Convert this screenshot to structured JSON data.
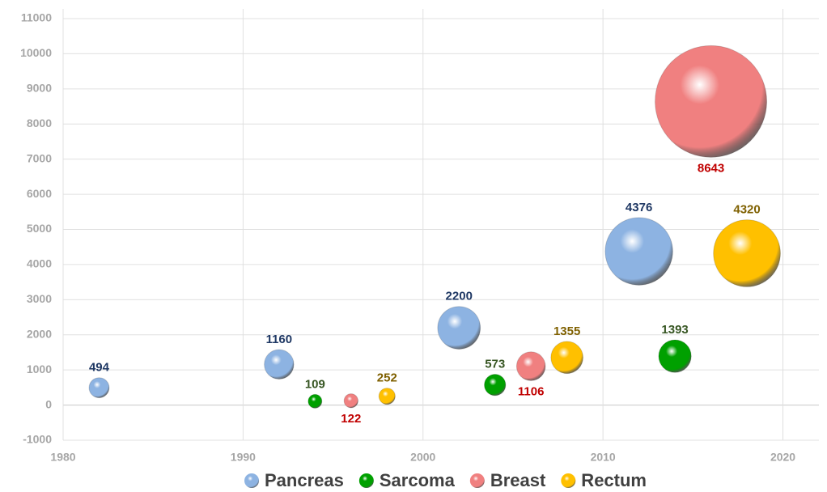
{
  "chart_data": {
    "type": "bubble",
    "xlim": [
      1980,
      2022
    ],
    "xticks": [
      1980,
      1990,
      2000,
      2010,
      2020
    ],
    "ylim": [
      -1000,
      11000
    ],
    "yticks": [
      -1000,
      0,
      1000,
      2000,
      3000,
      4000,
      5000,
      6000,
      7000,
      8000,
      9000,
      10000,
      11000
    ],
    "grid": true,
    "legend": "bottom",
    "series": [
      {
        "name": "Pancreas",
        "color": "#8db3e2",
        "label_color": "#1f3864",
        "x": [
          1982,
          1992,
          2002,
          2012
        ],
        "values": [
          494,
          1160,
          2200,
          4376
        ]
      },
      {
        "name": "Sarcoma",
        "color": "#00a000",
        "label_color": "#375623",
        "x": [
          1994,
          2004,
          2014
        ],
        "values": [
          109,
          573,
          1393
        ]
      },
      {
        "name": "Breast",
        "color": "#f08080",
        "label_color": "#c00000",
        "label_position": "below",
        "x": [
          1996,
          2006,
          2016
        ],
        "values": [
          122,
          1106,
          8643
        ]
      },
      {
        "name": "Rectum",
        "color": "#ffc000",
        "label_color": "#7f6000",
        "x": [
          1998,
          2008,
          2018
        ],
        "values": [
          252,
          1355,
          4320
        ]
      }
    ]
  }
}
